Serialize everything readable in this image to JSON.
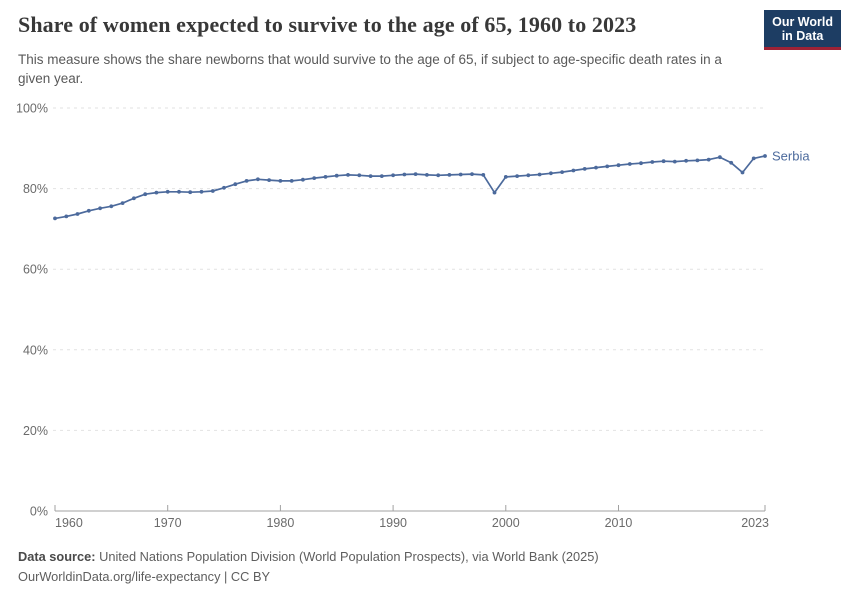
{
  "header": {
    "logo": {
      "line1": "Our World",
      "line2": "in Data",
      "bg_color": "#1d3d63",
      "accent_color": "#9d2235"
    }
  },
  "footer": {
    "datasource_label": "Data source:",
    "datasource_text": " United Nations Population Division (World Population Prospects), via World Bank (2025)",
    "url": "OurWorldinData.org/life-expectancy",
    "separator": " | ",
    "license": "CC BY"
  },
  "chart_data": {
    "type": "line",
    "title": "Share of women expected to survive to the age of 65, 1960 to 2023",
    "subtitle": "This measure shows the share newborns that would survive to the age of 65, if subject to age-specific death rates in a given year.",
    "xlabel": "",
    "ylabel": "",
    "xlim": [
      1960,
      2023
    ],
    "ylim": [
      0,
      100
    ],
    "x_ticks": [
      1960,
      1970,
      1980,
      1990,
      2000,
      2010,
      2023
    ],
    "y_ticks": [
      0,
      20,
      40,
      60,
      80,
      100
    ],
    "y_tick_suffix": "%",
    "grid": "horizontal-dashed",
    "legend_position": "line-end-label",
    "colors": {
      "grid": "#e2e2e2",
      "axis": "#a1a1a1",
      "tick_label": "#6b6b6b"
    },
    "series": [
      {
        "name": "Serbia",
        "color": "#4C6A9C",
        "x": [
          1960,
          1961,
          1962,
          1963,
          1964,
          1965,
          1966,
          1967,
          1968,
          1969,
          1970,
          1971,
          1972,
          1973,
          1974,
          1975,
          1976,
          1977,
          1978,
          1979,
          1980,
          1981,
          1982,
          1983,
          1984,
          1985,
          1986,
          1987,
          1988,
          1989,
          1990,
          1991,
          1992,
          1993,
          1994,
          1995,
          1996,
          1997,
          1998,
          1999,
          2000,
          2001,
          2002,
          2003,
          2004,
          2005,
          2006,
          2007,
          2008,
          2009,
          2010,
          2011,
          2012,
          2013,
          2014,
          2015,
          2016,
          2017,
          2018,
          2019,
          2020,
          2021,
          2022,
          2023
        ],
        "values": [
          72.6,
          73.1,
          73.7,
          74.5,
          75.1,
          75.6,
          76.4,
          77.6,
          78.6,
          79.0,
          79.2,
          79.2,
          79.1,
          79.2,
          79.4,
          80.2,
          81.1,
          81.9,
          82.3,
          82.1,
          81.9,
          81.9,
          82.2,
          82.6,
          82.9,
          83.2,
          83.4,
          83.3,
          83.1,
          83.1,
          83.3,
          83.5,
          83.6,
          83.4,
          83.3,
          83.4,
          83.5,
          83.6,
          83.4,
          79.0,
          82.9,
          83.1,
          83.3,
          83.5,
          83.8,
          84.1,
          84.5,
          84.9,
          85.2,
          85.5,
          85.8,
          86.1,
          86.3,
          86.6,
          86.8,
          86.7,
          86.9,
          87.0,
          87.2,
          87.8,
          86.4,
          84.0,
          87.5,
          88.1
        ]
      }
    ]
  }
}
